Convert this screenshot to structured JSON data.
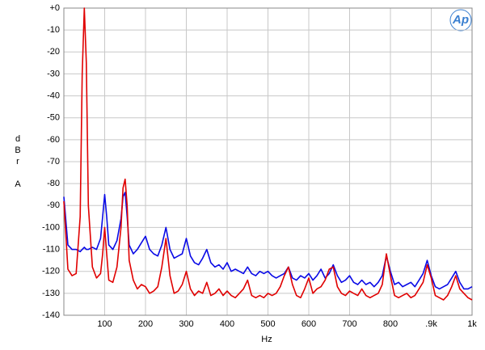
{
  "chart_data": {
    "type": "line",
    "logo": "Ap",
    "y_label": "dBr A",
    "x_label": "Hz",
    "xlim": [
      0,
      1000
    ],
    "ylim": [
      -140,
      0
    ],
    "xticks": [
      100,
      200,
      300,
      400,
      500,
      600,
      700,
      800,
      {
        "value": 900,
        "label": ".9k"
      },
      {
        "value": 1000,
        "label": "1k"
      }
    ],
    "yticks": [
      {
        "value": 0,
        "label": "+0"
      },
      -10,
      -20,
      -30,
      -40,
      -50,
      -60,
      -70,
      -80,
      -90,
      -100,
      -110,
      -120,
      -130,
      -140
    ],
    "grid": true,
    "x": [
      0,
      10,
      20,
      30,
      40,
      45,
      50,
      55,
      60,
      70,
      80,
      90,
      95,
      100,
      105,
      110,
      120,
      130,
      140,
      145,
      150,
      155,
      160,
      170,
      180,
      190,
      200,
      210,
      220,
      230,
      240,
      250,
      260,
      270,
      280,
      290,
      300,
      310,
      320,
      330,
      340,
      350,
      360,
      370,
      380,
      390,
      400,
      410,
      420,
      430,
      440,
      450,
      460,
      470,
      480,
      490,
      500,
      510,
      520,
      530,
      540,
      550,
      560,
      570,
      580,
      590,
      600,
      610,
      620,
      630,
      640,
      650,
      660,
      670,
      680,
      690,
      700,
      710,
      720,
      730,
      740,
      750,
      760,
      770,
      780,
      790,
      800,
      810,
      820,
      830,
      840,
      850,
      860,
      870,
      880,
      890,
      900,
      910,
      920,
      930,
      940,
      950,
      960,
      970,
      980,
      990,
      1000
    ],
    "series": [
      {
        "color": "#0a0ae6",
        "values": [
          -86,
          -108,
          -110,
          -110,
          -111,
          -110,
          -109,
          -110,
          -110,
          -109,
          -110,
          -105,
          -95,
          -85,
          -95,
          -108,
          -110,
          -106,
          -96,
          -86,
          -84,
          -95,
          -108,
          -112,
          -110,
          -107,
          -104,
          -110,
          -112,
          -113,
          -108,
          -100,
          -110,
          -114,
          -113,
          -112,
          -105,
          -113,
          -116,
          -117,
          -114,
          -110,
          -116,
          -118,
          -117,
          -119,
          -116,
          -120,
          -119,
          -120,
          -121,
          -118,
          -121,
          -122,
          -120,
          -121,
          -120,
          -122,
          -123,
          -122,
          -121,
          -118,
          -123,
          -124,
          -122,
          -123,
          -121,
          -124,
          -122,
          -119,
          -123,
          -121,
          -117,
          -122,
          -125,
          -124,
          -122,
          -125,
          -126,
          -124,
          -126,
          -125,
          -127,
          -125,
          -122,
          -113,
          -120,
          -126,
          -125,
          -127,
          -126,
          -125,
          -127,
          -124,
          -121,
          -115,
          -122,
          -127,
          -128,
          -127,
          -126,
          -123,
          -120,
          -125,
          -128,
          -128,
          -127
        ]
      },
      {
        "color": "#e00000",
        "values": [
          -88,
          -119,
          -122,
          -121,
          -95,
          -30,
          0,
          -25,
          -90,
          -118,
          -123,
          -121,
          -112,
          -100,
          -112,
          -124,
          -125,
          -118,
          -100,
          -82,
          -78,
          -90,
          -115,
          -124,
          -128,
          -126,
          -127,
          -130,
          -129,
          -127,
          -118,
          -105,
          -122,
          -130,
          -129,
          -126,
          -120,
          -128,
          -131,
          -129,
          -130,
          -125,
          -131,
          -130,
          -128,
          -131,
          -129,
          -131,
          -132,
          -130,
          -128,
          -124,
          -131,
          -132,
          -131,
          -132,
          -130,
          -131,
          -130,
          -127,
          -122,
          -118,
          -126,
          -131,
          -132,
          -128,
          -123,
          -130,
          -128,
          -127,
          -124,
          -119,
          -118,
          -127,
          -130,
          -131,
          -129,
          -130,
          -131,
          -128,
          -131,
          -132,
          -131,
          -130,
          -126,
          -112,
          -122,
          -131,
          -132,
          -131,
          -130,
          -132,
          -131,
          -128,
          -125,
          -117,
          -123,
          -131,
          -132,
          -133,
          -131,
          -127,
          -122,
          -128,
          -130,
          -132,
          -133
        ]
      }
    ]
  }
}
